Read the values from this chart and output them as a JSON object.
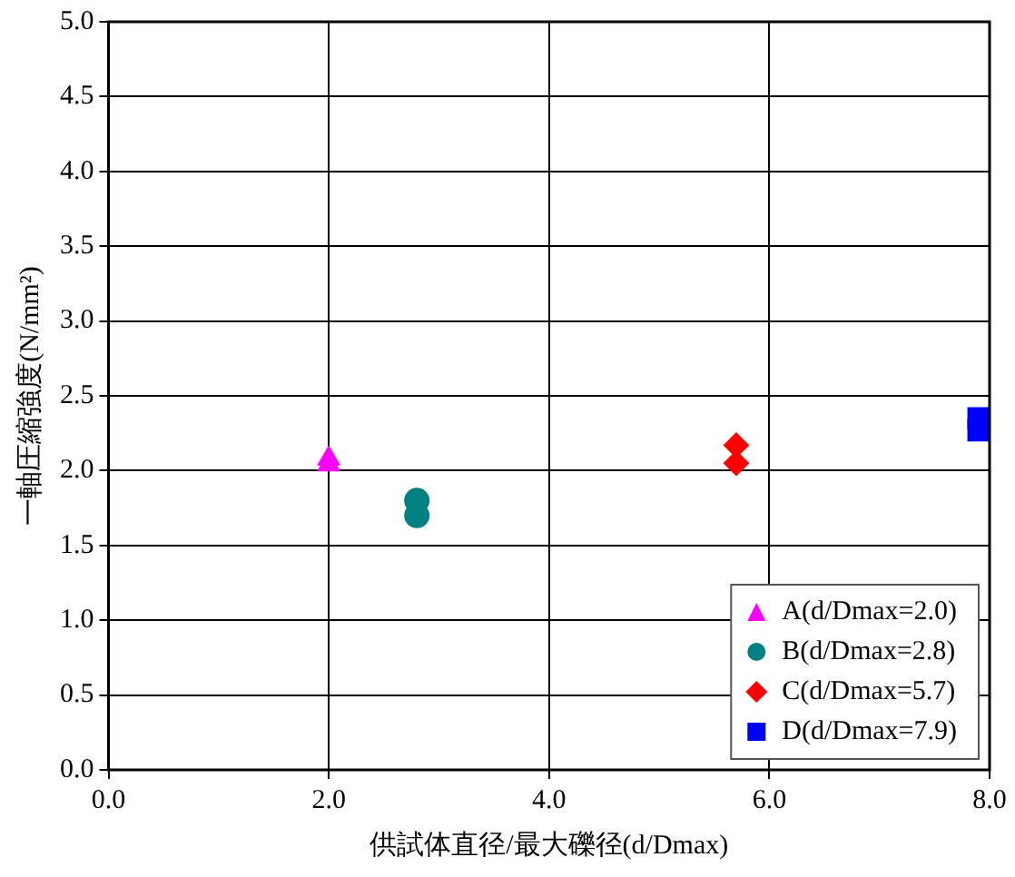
{
  "chart_data": {
    "type": "scatter",
    "xlabel": "供試体直径/最大礫径(d/Dmax)",
    "ylabel": "一軸圧縮強度(N/mm²)",
    "xlim": [
      0,
      8
    ],
    "xticks": [
      {
        "value": 0,
        "label": "0.0"
      },
      {
        "value": 2,
        "label": "2.0"
      },
      {
        "value": 4,
        "label": "4.0"
      },
      {
        "value": 6,
        "label": "6.0"
      },
      {
        "value": 8,
        "label": "8.0"
      }
    ],
    "ylim": [
      0,
      5
    ],
    "yticks": [
      {
        "value": 0,
        "label": "0.0"
      },
      {
        "value": 0.5,
        "label": "0.5"
      },
      {
        "value": 1,
        "label": "1.0"
      },
      {
        "value": 1.5,
        "label": "1.5"
      },
      {
        "value": 2,
        "label": "2.0"
      },
      {
        "value": 2.5,
        "label": "2.5"
      },
      {
        "value": 3,
        "label": "3.0"
      },
      {
        "value": 3.5,
        "label": "3.5"
      },
      {
        "value": 4,
        "label": "4.0"
      },
      {
        "value": 4.5,
        "label": "4.5"
      },
      {
        "value": 5,
        "label": "5.0"
      }
    ],
    "grid": true,
    "legend": "bottom right",
    "series": [
      {
        "name": "A(d/Dmax=2.0)",
        "color": "#ff00ff",
        "marker": "triangle",
        "x": [
          2.0,
          2.0
        ],
        "values": [
          2.08,
          2.04
        ]
      },
      {
        "name": "B(d/Dmax=2.8)",
        "color": "#008080",
        "marker": "circle",
        "x": [
          2.8,
          2.8
        ],
        "values": [
          1.8,
          1.7
        ]
      },
      {
        "name": "C(d/Dmax=5.7)",
        "color": "#ff0000",
        "marker": "diamond",
        "x": [
          5.7,
          5.7
        ],
        "values": [
          2.17,
          2.05
        ]
      },
      {
        "name": "D(d/Dmax=7.9)",
        "color": "#0000ff",
        "marker": "square",
        "x": [
          7.9,
          7.9
        ],
        "values": [
          2.35,
          2.27
        ]
      }
    ]
  }
}
